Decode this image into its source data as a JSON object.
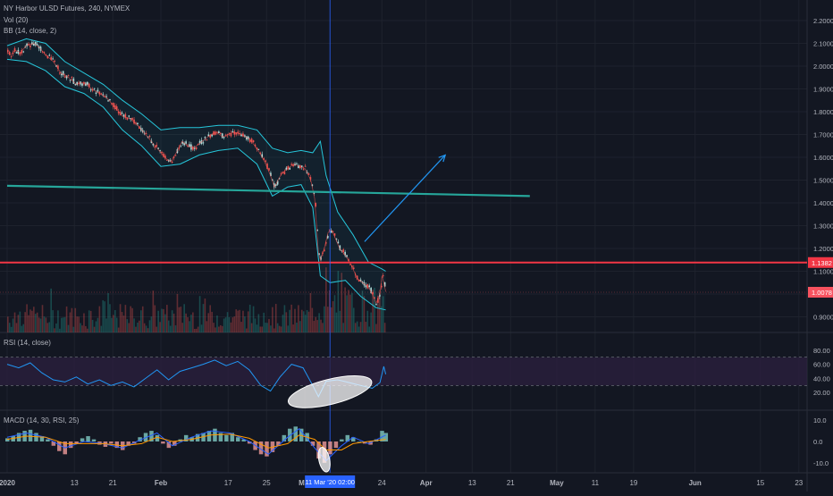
{
  "chart_data": {
    "type": "line",
    "title": "NY Harbor ULSD Futures, 240, NYMEX",
    "price_panel": {
      "ylim": [
        0.8,
        2.2
      ],
      "yticks": [
        "2.2000",
        "2.1000",
        "2.0000",
        "1.9000",
        "1.8000",
        "1.7000",
        "1.6000",
        "1.5000",
        "1.4000",
        "1.3000",
        "1.2000",
        "1.1000",
        "1.0000",
        "0.9000"
      ],
      "indicators": [
        "Vol (20)",
        "BB (14, close, 2)"
      ],
      "series": [
        {
          "name": "price",
          "points": [
            [
              0,
              2.06
            ],
            [
              0.1,
              2.05
            ],
            [
              0.2,
              2.07
            ],
            [
              0.35,
              2.06
            ],
            [
              0.5,
              2.09
            ],
            [
              0.7,
              2.1
            ],
            [
              0.85,
              2.08
            ],
            [
              1.0,
              2.05
            ],
            [
              1.2,
              2.02
            ],
            [
              1.4,
              1.97
            ],
            [
              1.6,
              1.95
            ],
            [
              1.8,
              1.92
            ],
            [
              2.0,
              1.93
            ],
            [
              2.2,
              1.9
            ],
            [
              2.4,
              1.88
            ],
            [
              2.6,
              1.86
            ],
            [
              2.8,
              1.82
            ],
            [
              3.0,
              1.78
            ],
            [
              3.2,
              1.77
            ],
            [
              3.4,
              1.74
            ],
            [
              3.6,
              1.7
            ],
            [
              3.8,
              1.66
            ],
            [
              4.0,
              1.62
            ],
            [
              4.1,
              1.6
            ],
            [
              4.25,
              1.58
            ],
            [
              4.4,
              1.62
            ],
            [
              4.55,
              1.67
            ],
            [
              4.7,
              1.65
            ],
            [
              4.85,
              1.64
            ],
            [
              5.0,
              1.66
            ],
            [
              5.15,
              1.68
            ],
            [
              5.3,
              1.7
            ],
            [
              5.45,
              1.71
            ],
            [
              5.6,
              1.69
            ],
            [
              5.75,
              1.7
            ],
            [
              5.9,
              1.71
            ],
            [
              6.1,
              1.7
            ],
            [
              6.3,
              1.68
            ],
            [
              6.5,
              1.64
            ],
            [
              6.7,
              1.58
            ],
            [
              6.85,
              1.52
            ],
            [
              6.95,
              1.47
            ],
            [
              7.05,
              1.5
            ],
            [
              7.15,
              1.53
            ],
            [
              7.3,
              1.55
            ],
            [
              7.45,
              1.57
            ],
            [
              7.6,
              1.56
            ],
            [
              7.75,
              1.55
            ],
            [
              7.9,
              1.5
            ],
            [
              8.0,
              1.42
            ],
            [
              8.05,
              1.3
            ],
            [
              8.1,
              1.18
            ],
            [
              8.15,
              1.15
            ],
            [
              8.25,
              1.2
            ],
            [
              8.35,
              1.27
            ],
            [
              8.45,
              1.28
            ],
            [
              8.55,
              1.24
            ],
            [
              8.65,
              1.2
            ],
            [
              8.8,
              1.17
            ],
            [
              8.95,
              1.13
            ],
            [
              9.1,
              1.07
            ],
            [
              9.25,
              1.05
            ],
            [
              9.4,
              1.03
            ],
            [
              9.5,
              1.0
            ],
            [
              9.6,
              0.96
            ],
            [
              9.7,
              1.0
            ],
            [
              9.75,
              1.08
            ],
            [
              9.8,
              1.05
            ],
            [
              9.85,
              1.01
            ]
          ]
        },
        {
          "name": "bb_upper",
          "points": [
            [
              0,
              2.09
            ],
            [
              0.5,
              2.12
            ],
            [
              1.0,
              2.1
            ],
            [
              1.5,
              2.02
            ],
            [
              2.0,
              1.97
            ],
            [
              2.5,
              1.92
            ],
            [
              3.0,
              1.85
            ],
            [
              3.5,
              1.79
            ],
            [
              4.0,
              1.72
            ],
            [
              4.5,
              1.73
            ],
            [
              5.0,
              1.73
            ],
            [
              5.5,
              1.74
            ],
            [
              6.0,
              1.74
            ],
            [
              6.5,
              1.72
            ],
            [
              6.9,
              1.64
            ],
            [
              7.3,
              1.62
            ],
            [
              7.65,
              1.63
            ],
            [
              7.95,
              1.62
            ],
            [
              8.15,
              1.67
            ],
            [
              8.3,
              1.52
            ],
            [
              8.6,
              1.36
            ],
            [
              9.0,
              1.26
            ],
            [
              9.4,
              1.14
            ],
            [
              9.75,
              1.11
            ],
            [
              9.85,
              1.1
            ]
          ]
        },
        {
          "name": "bb_lower",
          "points": [
            [
              0,
              2.03
            ],
            [
              0.5,
              2.02
            ],
            [
              1.0,
              1.98
            ],
            [
              1.5,
              1.91
            ],
            [
              2.0,
              1.88
            ],
            [
              2.5,
              1.82
            ],
            [
              3.0,
              1.72
            ],
            [
              3.5,
              1.65
            ],
            [
              4.0,
              1.56
            ],
            [
              4.5,
              1.57
            ],
            [
              5.0,
              1.61
            ],
            [
              5.5,
              1.63
            ],
            [
              6.0,
              1.64
            ],
            [
              6.5,
              1.57
            ],
            [
              6.9,
              1.43
            ],
            [
              7.3,
              1.47
            ],
            [
              7.65,
              1.48
            ],
            [
              7.95,
              1.38
            ],
            [
              8.15,
              1.08
            ],
            [
              8.4,
              1.05
            ],
            [
              8.8,
              1.06
            ],
            [
              9.2,
              0.99
            ],
            [
              9.6,
              0.94
            ],
            [
              9.85,
              0.93
            ]
          ]
        }
      ],
      "drawings": {
        "trendline": {
          "from": [
            0,
            1.475
          ],
          "to": [
            13.6,
            1.43
          ],
          "color": "#26a69a"
        },
        "arrow": {
          "from": [
            9.3,
            1.23
          ],
          "to": [
            11.4,
            1.61
          ],
          "color": "#2196f3"
        },
        "hline": {
          "value": 1.1382,
          "label": "1.1382",
          "color": "#f23645"
        },
        "last_price": {
          "value": 1.0078,
          "label": "1.0078",
          "color": "#f7525f"
        },
        "vline_x": 8.4
      }
    },
    "rsi_panel": {
      "label": "RSI (14, close)",
      "ylim": [
        0,
        100
      ],
      "yticks": [
        "80.00",
        "60.00",
        "40.00",
        "20.00"
      ],
      "bands": [
        30,
        70
      ],
      "points": [
        [
          0,
          60
        ],
        [
          0.3,
          55
        ],
        [
          0.6,
          62
        ],
        [
          0.9,
          48
        ],
        [
          1.2,
          38
        ],
        [
          1.5,
          35
        ],
        [
          1.8,
          42
        ],
        [
          2.1,
          32
        ],
        [
          2.4,
          38
        ],
        [
          2.7,
          30
        ],
        [
          3.0,
          35
        ],
        [
          3.3,
          28
        ],
        [
          3.6,
          40
        ],
        [
          3.9,
          52
        ],
        [
          4.2,
          38
        ],
        [
          4.5,
          50
        ],
        [
          4.8,
          55
        ],
        [
          5.1,
          60
        ],
        [
          5.4,
          66
        ],
        [
          5.7,
          58
        ],
        [
          6.0,
          64
        ],
        [
          6.3,
          52
        ],
        [
          6.6,
          30
        ],
        [
          6.85,
          22
        ],
        [
          7.1,
          42
        ],
        [
          7.4,
          60
        ],
        [
          7.7,
          55
        ],
        [
          7.95,
          30
        ],
        [
          8.1,
          14
        ],
        [
          8.3,
          36
        ],
        [
          8.6,
          38
        ],
        [
          8.9,
          34
        ],
        [
          9.2,
          30
        ],
        [
          9.5,
          26
        ],
        [
          9.7,
          34
        ],
        [
          9.8,
          57
        ],
        [
          9.85,
          46
        ]
      ]
    },
    "macd_panel": {
      "label": "MACD (14, 30, RSI, 25)",
      "ylim": [
        -13,
        13
      ],
      "yticks": [
        "10.0",
        "0.0",
        "-10.0"
      ],
      "histogram": [
        [
          0.0,
          1.5
        ],
        [
          0.15,
          2.5
        ],
        [
          0.3,
          4
        ],
        [
          0.45,
          5
        ],
        [
          0.6,
          5.5
        ],
        [
          0.75,
          4
        ],
        [
          0.9,
          2.5
        ],
        [
          1.05,
          1
        ],
        [
          1.2,
          -2
        ],
        [
          1.35,
          -4.5
        ],
        [
          1.5,
          -6
        ],
        [
          1.65,
          -3
        ],
        [
          1.8,
          -1
        ],
        [
          1.95,
          1.5
        ],
        [
          2.1,
          2.5
        ],
        [
          2.25,
          1
        ],
        [
          2.4,
          -1.5
        ],
        [
          2.55,
          -2.5
        ],
        [
          2.7,
          -1
        ],
        [
          2.85,
          -3
        ],
        [
          3.0,
          -4
        ],
        [
          3.15,
          -2
        ],
        [
          3.3,
          -1
        ],
        [
          3.45,
          2
        ],
        [
          3.6,
          4
        ],
        [
          3.75,
          5
        ],
        [
          3.9,
          3
        ],
        [
          4.05,
          -1
        ],
        [
          4.2,
          -3
        ],
        [
          4.35,
          -2
        ],
        [
          4.5,
          1
        ],
        [
          4.65,
          3
        ],
        [
          4.8,
          2
        ],
        [
          4.95,
          3.5
        ],
        [
          5.1,
          4
        ],
        [
          5.25,
          5
        ],
        [
          5.4,
          6
        ],
        [
          5.55,
          4
        ],
        [
          5.7,
          3
        ],
        [
          5.85,
          4
        ],
        [
          6.0,
          2
        ],
        [
          6.15,
          1
        ],
        [
          6.3,
          -1
        ],
        [
          6.45,
          -4
        ],
        [
          6.6,
          -6
        ],
        [
          6.75,
          -7
        ],
        [
          6.9,
          -5
        ],
        [
          7.05,
          -2
        ],
        [
          7.2,
          3
        ],
        [
          7.35,
          6
        ],
        [
          7.5,
          7
        ],
        [
          7.65,
          6
        ],
        [
          7.8,
          4
        ],
        [
          7.95,
          -2
        ],
        [
          8.1,
          -8
        ],
        [
          8.25,
          -10
        ],
        [
          8.4,
          -6
        ],
        [
          8.55,
          -3
        ],
        [
          8.7,
          1
        ],
        [
          8.85,
          3
        ],
        [
          9.0,
          2
        ],
        [
          9.15,
          0
        ],
        [
          9.3,
          -1
        ],
        [
          9.45,
          -1.5
        ],
        [
          9.6,
          1
        ],
        [
          9.75,
          5
        ],
        [
          9.85,
          4
        ]
      ],
      "line1": [
        [
          0,
          2
        ],
        [
          0.5,
          4
        ],
        [
          1.0,
          2
        ],
        [
          1.5,
          -3
        ],
        [
          2.0,
          0
        ],
        [
          2.5,
          -1
        ],
        [
          3.0,
          -3
        ],
        [
          3.5,
          1
        ],
        [
          3.9,
          4
        ],
        [
          4.3,
          -2
        ],
        [
          4.8,
          2
        ],
        [
          5.3,
          5
        ],
        [
          5.8,
          4
        ],
        [
          6.3,
          0
        ],
        [
          6.8,
          -6
        ],
        [
          7.3,
          2
        ],
        [
          7.6,
          6
        ],
        [
          8.0,
          -3
        ],
        [
          8.3,
          -9
        ],
        [
          8.7,
          -2
        ],
        [
          9.0,
          2
        ],
        [
          9.4,
          -1
        ],
        [
          9.85,
          3
        ]
      ],
      "line2": [
        [
          0,
          1
        ],
        [
          0.5,
          2.5
        ],
        [
          1.0,
          2
        ],
        [
          1.5,
          -1
        ],
        [
          2.0,
          -1
        ],
        [
          2.5,
          -1
        ],
        [
          3.0,
          -2
        ],
        [
          3.5,
          -1
        ],
        [
          3.9,
          2
        ],
        [
          4.3,
          0
        ],
        [
          4.8,
          1
        ],
        [
          5.3,
          3
        ],
        [
          5.8,
          3.5
        ],
        [
          6.3,
          1.5
        ],
        [
          6.8,
          -3
        ],
        [
          7.3,
          -1
        ],
        [
          7.6,
          3
        ],
        [
          8.0,
          1
        ],
        [
          8.3,
          -4
        ],
        [
          8.7,
          -4
        ],
        [
          9.0,
          -1
        ],
        [
          9.4,
          0
        ],
        [
          9.85,
          1
        ]
      ]
    },
    "x_axis": {
      "ticks": [
        {
          "x": 0,
          "label": "2020",
          "bold": true
        },
        {
          "x": 1.75,
          "label": "13"
        },
        {
          "x": 2.75,
          "label": "21"
        },
        {
          "x": 4.0,
          "label": "Feb",
          "bold": true
        },
        {
          "x": 5.75,
          "label": "17"
        },
        {
          "x": 6.75,
          "label": "25"
        },
        {
          "x": 7.75,
          "label": "Mar",
          "bold": true
        },
        {
          "x": 9.75,
          "label": "24"
        },
        {
          "x": 10.9,
          "label": "Apr",
          "bold": true
        },
        {
          "x": 12.1,
          "label": "13"
        },
        {
          "x": 13.1,
          "label": "21"
        },
        {
          "x": 14.3,
          "label": "May",
          "bold": true
        },
        {
          "x": 15.3,
          "label": "11"
        },
        {
          "x": 16.3,
          "label": "19"
        },
        {
          "x": 17.9,
          "label": "Jun",
          "bold": true
        },
        {
          "x": 19.6,
          "label": "15"
        },
        {
          "x": 20.6,
          "label": "23"
        }
      ],
      "crosshair_label": "11 Mar '20  02:00",
      "crosshair_x": 8.4
    },
    "colors": {
      "background": "#131722",
      "grid": "#1e222d",
      "price_candle": "#ef5350",
      "bollinger": "#26c6da",
      "rsi_line": "#2196f3",
      "rsi_band": "#2a1f3d",
      "macd_line1": "#2962ff",
      "macd_line2": "#ff9800",
      "macd_pos": "#80cbc4",
      "macd_neg": "#ef9a9a",
      "crosshair": "#2962ff"
    }
  }
}
